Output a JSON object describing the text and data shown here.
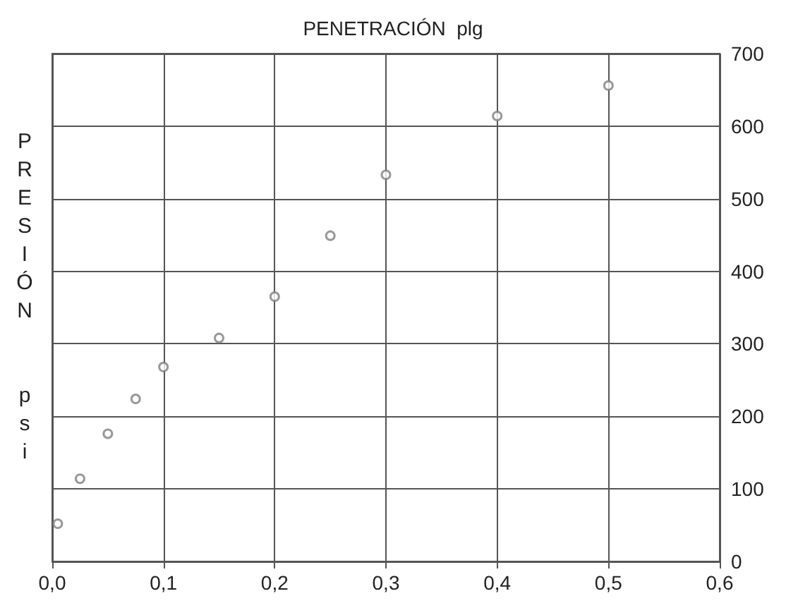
{
  "chart_data": {
    "type": "scatter",
    "title": "PENETRACIÓN  plg",
    "ylabel": "PRESIÓN  psi",
    "x": [
      0.005,
      0.025,
      0.05,
      0.075,
      0.1,
      0.15,
      0.2,
      0.25,
      0.3,
      0.4,
      0.5
    ],
    "series": [
      {
        "color": "#7f7f7f",
        "values": [
          52,
          114,
          176,
          224,
          268,
          308,
          365,
          449,
          533,
          614,
          656
        ]
      }
    ],
    "xlim": [
      0,
      0.6
    ],
    "xticks": [
      {
        "value": 0,
        "label": "0,0"
      },
      {
        "value": 0.1,
        "label": "0,1"
      },
      {
        "value": 0.2,
        "label": "0,2"
      },
      {
        "value": 0.3,
        "label": "0,3"
      },
      {
        "value": 0.4,
        "label": "0,4"
      },
      {
        "value": 0.5,
        "label": "0,5"
      },
      {
        "value": 0.6,
        "label": "0,6"
      }
    ],
    "ylim": [
      0,
      700
    ],
    "yticks": [
      0,
      100,
      200,
      300,
      400,
      500,
      600,
      700
    ],
    "grid": true,
    "marker": "circle"
  }
}
